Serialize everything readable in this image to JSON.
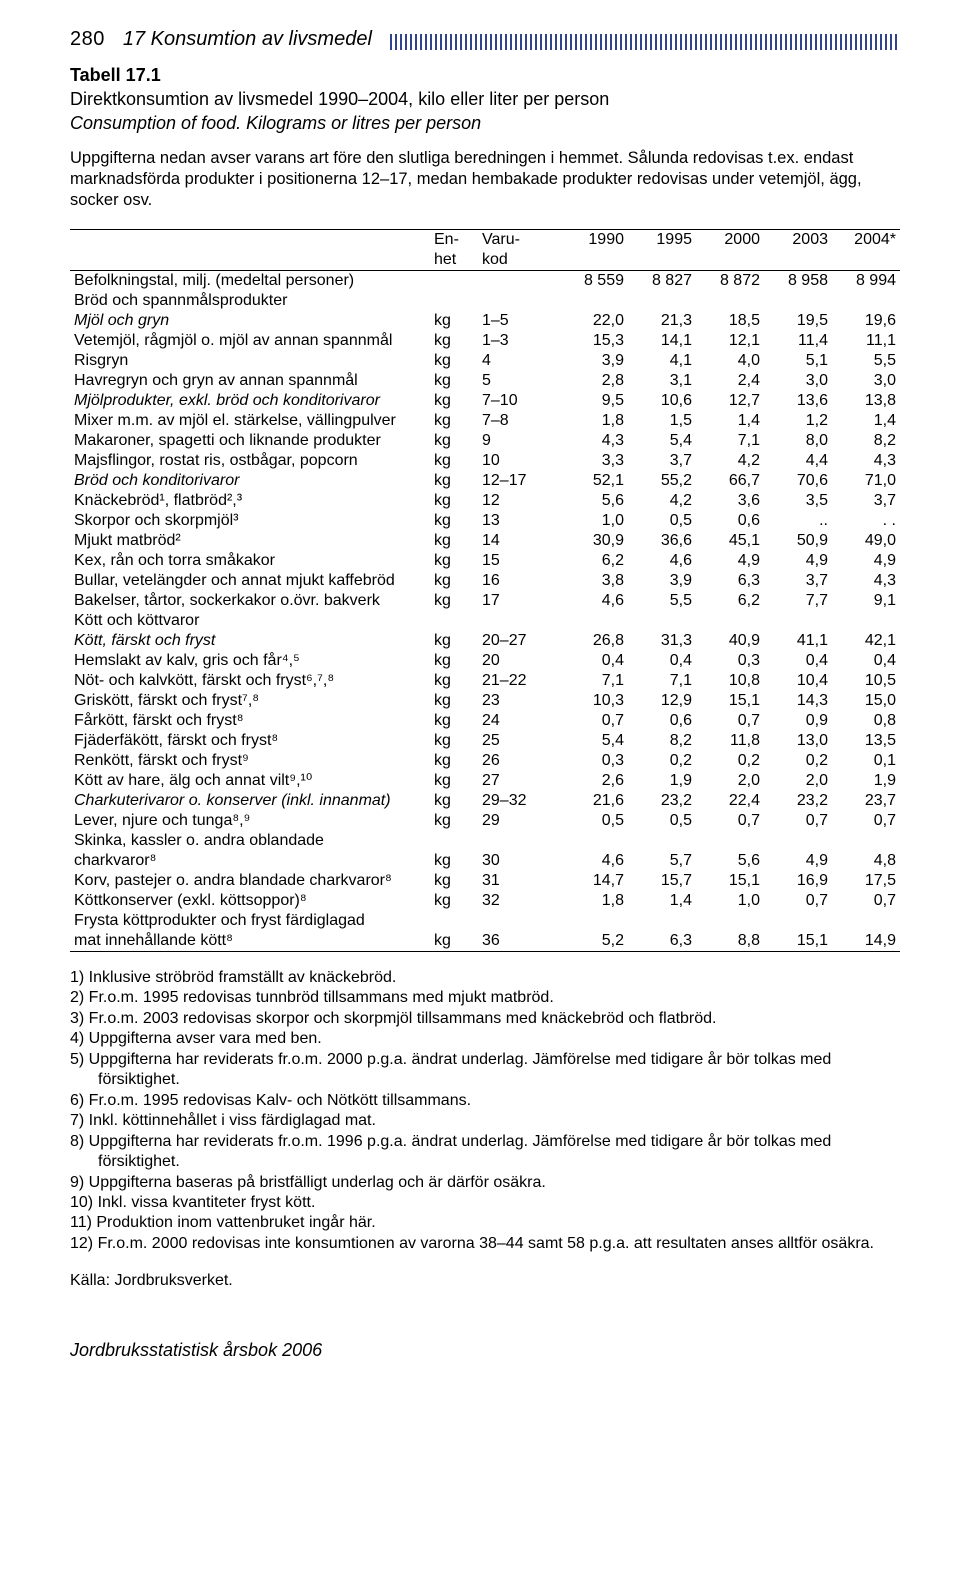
{
  "page_number": "280",
  "chapter": "17   Konsumtion av livsmedel",
  "table_label": "Tabell 17.1",
  "table_title": "Direktkonsumtion av livsmedel 1990–2004, kilo eller liter per person",
  "table_subtitle": "Consumption of food. Kilograms or litres per person",
  "table_note": "Uppgifterna nedan avser varans art före den slutliga beredningen i hemmet. Sålunda redovisas t.ex. endast marknadsförda produkter i positionerna 12–17, medan hembakade produkter redovisas under vetemjöl, ägg, socker osv.",
  "header": {
    "unit1": "En-",
    "unit2": "het",
    "code1": "Varu-",
    "code2": "kod",
    "years": [
      "1990",
      "1995",
      "2000",
      "2003",
      "2004*"
    ]
  },
  "population_row": {
    "label": "Befolkningstal, milj. (medeltal personer)",
    "vals": [
      "8 559",
      "8 827",
      "8 872",
      "8 958",
      "8 994"
    ]
  },
  "sections": [
    {
      "title": "Bröd och spannmålsprodukter",
      "rows": [
        {
          "label": "Mjöl och gryn",
          "italic": true,
          "unit": "kg",
          "code": "1–5",
          "v": [
            "22,0",
            "21,3",
            "18,5",
            "19,5",
            "19,6"
          ]
        },
        {
          "label": "Vetemjöl, rågmjöl o. mjöl av annan spannmål",
          "unit": "kg",
          "code": "1–3",
          "v": [
            "15,3",
            "14,1",
            "12,1",
            "11,4",
            "11,1"
          ]
        },
        {
          "label": "Risgryn",
          "unit": "kg",
          "code": "4",
          "v": [
            "3,9",
            "4,1",
            "4,0",
            "5,1",
            "5,5"
          ]
        },
        {
          "label": "Havregryn och gryn av annan spannmål",
          "unit": "kg",
          "code": "5",
          "v": [
            "2,8",
            "3,1",
            "2,4",
            "3,0",
            "3,0"
          ]
        },
        {
          "label": "Mjölprodukter, exkl. bröd och konditorivaror",
          "italic": true,
          "unit": "kg",
          "code": "7–10",
          "v": [
            "9,5",
            "10,6",
            "12,7",
            "13,6",
            "13,8"
          ]
        },
        {
          "label": "Mixer m.m. av mjöl el. stärkelse, vällingpulver",
          "unit": "kg",
          "code": "7–8",
          "v": [
            "1,8",
            "1,5",
            "1,4",
            "1,2",
            "1,4"
          ]
        },
        {
          "label": "Makaroner, spagetti och liknande produkter",
          "unit": "kg",
          "code": "9",
          "v": [
            "4,3",
            "5,4",
            "7,1",
            "8,0",
            "8,2"
          ]
        },
        {
          "label": "Majsflingor, rostat ris, ostbågar, popcorn",
          "unit": "kg",
          "code": "10",
          "v": [
            "3,3",
            "3,7",
            "4,2",
            "4,4",
            "4,3"
          ]
        },
        {
          "label": "Bröd och konditorivaror",
          "italic": true,
          "unit": "kg",
          "code": "12–17",
          "v": [
            "52,1",
            "55,2",
            "66,7",
            "70,6",
            "71,0"
          ]
        },
        {
          "label": "Knäckebröd¹, flatbröd²,³",
          "unit": "kg",
          "code": "12",
          "v": [
            "5,6",
            "4,2",
            "3,6",
            "3,5",
            "3,7"
          ],
          "sup": "1",
          "sup2": "2,3"
        },
        {
          "label": "Skorpor och skorpmjöl³",
          "unit": "kg",
          "code": "13",
          "v": [
            "1,0",
            "0,5",
            "0,6",
            "..",
            ". ."
          ],
          "sup": "3"
        },
        {
          "label": "Mjukt matbröd²",
          "unit": "kg",
          "code": "14",
          "v": [
            "30,9",
            "36,6",
            "45,1",
            "50,9",
            "49,0"
          ],
          "sup": "2"
        },
        {
          "label": "Kex, rån och torra småkakor",
          "unit": "kg",
          "code": "15",
          "v": [
            "6,2",
            "4,6",
            "4,9",
            "4,9",
            "4,9"
          ]
        },
        {
          "label": "Bullar, vetelängder och annat mjukt kaffebröd",
          "unit": "kg",
          "code": "16",
          "v": [
            "3,8",
            "3,9",
            "6,3",
            "3,7",
            "4,3"
          ]
        },
        {
          "label": "Bakelser, tårtor, sockerkakor o.övr. bakverk",
          "unit": "kg",
          "code": "17",
          "v": [
            "4,6",
            "5,5",
            "6,2",
            "7,7",
            "9,1"
          ]
        }
      ]
    },
    {
      "title": "Kött och köttvaror",
      "rows": [
        {
          "label": "Kött, färskt och fryst",
          "italic": true,
          "unit": "kg",
          "code": "20–27",
          "v": [
            "26,8",
            "31,3",
            "40,9",
            "41,1",
            "42,1"
          ]
        },
        {
          "label": "Hemslakt av kalv, gris och får⁴,⁵",
          "unit": "kg",
          "code": "20",
          "v": [
            "0,4",
            "0,4",
            "0,3",
            "0,4",
            "0,4"
          ],
          "sup": "4,5"
        },
        {
          "label": "Nöt- och kalvkött, färskt och fryst⁶,⁷,⁸",
          "unit": "kg",
          "code": "21–22",
          "v": [
            "7,1",
            "7,1",
            "10,8",
            "10,4",
            "10,5"
          ],
          "sup": "6,7,8"
        },
        {
          "label": "Griskött, färskt och fryst⁷,⁸",
          "unit": "kg",
          "code": "23",
          "v": [
            "10,3",
            "12,9",
            "15,1",
            "14,3",
            "15,0"
          ],
          "sup": "7,8"
        },
        {
          "label": "Fårkött, färskt och fryst⁸",
          "unit": "kg",
          "code": "24",
          "v": [
            "0,7",
            "0,6",
            "0,7",
            "0,9",
            "0,8"
          ],
          "sup": "8"
        },
        {
          "label": "Fjäderfäkött, färskt och fryst⁸",
          "unit": "kg",
          "code": "25",
          "v": [
            "5,4",
            "8,2",
            "11,8",
            "13,0",
            "13,5"
          ],
          "sup": "8"
        },
        {
          "label": "Renkött, färskt och fryst⁹",
          "unit": "kg",
          "code": "26",
          "v": [
            "0,3",
            "0,2",
            "0,2",
            "0,2",
            "0,1"
          ],
          "sup": "9"
        },
        {
          "label": "Kött av hare, älg och annat vilt⁹,¹⁰",
          "unit": "kg",
          "code": "27",
          "v": [
            "2,6",
            "1,9",
            "2,0",
            "2,0",
            "1,9"
          ],
          "sup": "9,10"
        },
        {
          "label": "Charkuterivaror o. konserver (inkl. innanmat)",
          "italic": true,
          "unit": "kg",
          "code": "29–32",
          "v": [
            "21,6",
            "23,2",
            "22,4",
            "23,2",
            "23,7"
          ]
        },
        {
          "label": "Lever, njure och tunga⁸,⁹",
          "unit": "kg",
          "code": "29",
          "v": [
            "0,5",
            "0,5",
            "0,7",
            "0,7",
            "0,7"
          ],
          "sup": "8,9"
        },
        {
          "label": "Skinka, kassler o. andra oblandade charkvaror⁸",
          "two_line": true,
          "label1": "Skinka, kassler o. andra oblandade",
          "label2": "charkvaror⁸",
          "unit": "kg",
          "code": "30",
          "v": [
            "4,6",
            "5,7",
            "5,6",
            "4,9",
            "4,8"
          ],
          "sup": "8"
        },
        {
          "label": "Korv, pastejer o. andra blandade charkvaror⁸",
          "unit": "kg",
          "code": "31",
          "v": [
            "14,7",
            "15,7",
            "15,1",
            "16,9",
            "17,5"
          ],
          "sup": "8"
        },
        {
          "label": "Köttkonserver (exkl. köttsoppor)⁸",
          "unit": "kg",
          "code": "32",
          "v": [
            "1,8",
            "1,4",
            "1,0",
            "0,7",
            "0,7"
          ],
          "sup": "8"
        },
        {
          "label": "Frysta köttprodukter och fryst färdiglagad mat innehållande kött⁸",
          "two_line": true,
          "label1": "Frysta köttprodukter och fryst färdiglagad",
          "label2": "mat innehållande kött⁸",
          "unit": "kg",
          "code": "36",
          "v": [
            "5,2",
            "6,3",
            "8,8",
            "15,1",
            "14,9"
          ],
          "sup": "8"
        }
      ]
    }
  ],
  "footnotes": [
    "1) Inklusive ströbröd framställt av knäckebröd.",
    "2) Fr.o.m. 1995 redovisas tunnbröd tillsammans med mjukt matbröd.",
    "3) Fr.o.m. 2003 redovisas skorpor och skorpmjöl tillsammans med knäckebröd och flatbröd.",
    "4) Uppgifterna avser vara med ben.",
    "5) Uppgifterna har reviderats fr.o.m. 2000 p.g.a. ändrat underlag. Jämförelse med tidigare år bör tolkas med försiktighet.",
    "6) Fr.o.m. 1995 redovisas Kalv- och Nötkött tillsammans.",
    "7) Inkl. köttinnehållet i viss färdiglagad mat.",
    "8) Uppgifterna har reviderats fr.o.m. 1996 p.g.a. ändrat underlag. Jämförelse med tidigare år bör tolkas med försiktighet.",
    "9) Uppgifterna baseras på bristfälligt underlag och är därför osäkra.",
    "10) Inkl. vissa kvantiteter fryst kött.",
    "11) Produktion inom vattenbruket ingår här.",
    "12) Fr.o.m. 2000 redovisas inte konsumtionen av varorna 38–44 samt 58 p.g.a. att resultaten anses alltför osäkra."
  ],
  "source": "Källa: Jordbruksverket.",
  "book_title": "Jordbruksstatistisk årsbok 2006"
}
